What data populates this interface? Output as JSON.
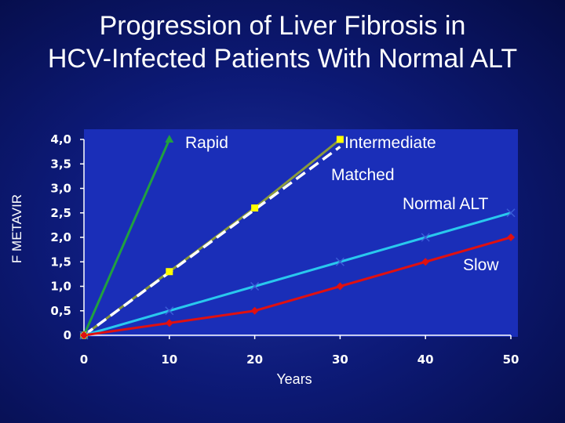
{
  "chart_data": {
    "type": "line",
    "title": [
      "Progression of Liver Fibrosis in",
      "HCV-Infected Patients With Normal ALT"
    ],
    "xlabel": "Years",
    "ylabel": "F METAVIR",
    "xlim": [
      0,
      50
    ],
    "ylim": [
      0,
      4
    ],
    "x_ticks": [
      "0",
      "10",
      "20",
      "30",
      "40",
      "50"
    ],
    "y_ticks": [
      "0",
      "0,5",
      "1,0",
      "1,5",
      "2,0",
      "2,5",
      "3,0",
      "3,5",
      "4,0"
    ],
    "grid": false,
    "series": [
      {
        "name": "Rapid",
        "color": "#20a040",
        "marker": "triangle",
        "dash": false,
        "x": [
          0,
          10
        ],
        "y": [
          0,
          4.0
        ]
      },
      {
        "name": "Intermediate",
        "color": "#8a9a3c",
        "marker": "square",
        "dash": false,
        "x": [
          0,
          10,
          20,
          30
        ],
        "y": [
          0,
          1.3,
          2.6,
          4.0
        ]
      },
      {
        "name": "Matched",
        "color": "#ffffff",
        "marker": "none",
        "dash": true,
        "x": [
          0,
          30
        ],
        "y": [
          0,
          3.85
        ]
      },
      {
        "name": "Normal ALT",
        "color": "#29c8ee",
        "marker": "x",
        "dash": false,
        "x": [
          0,
          10,
          20,
          30,
          40,
          50
        ],
        "y": [
          0,
          0.5,
          1.0,
          1.5,
          2.0,
          2.5
        ]
      },
      {
        "name": "Slow",
        "color": "#e01010",
        "marker": "diamond",
        "dash": false,
        "x": [
          0,
          10,
          20,
          30,
          40,
          50
        ],
        "y": [
          0,
          0.25,
          0.5,
          1.0,
          1.5,
          2.0
        ]
      }
    ]
  },
  "annotations": {
    "rapid": "Rapid",
    "intermediate": "Intermediate",
    "matched": "Matched",
    "normal_alt": "Normal ALT",
    "slow": "Slow"
  },
  "colors": {
    "background": "#0d1a78",
    "plot_area": "#1a2eb8",
    "axis": "#ffffff"
  }
}
